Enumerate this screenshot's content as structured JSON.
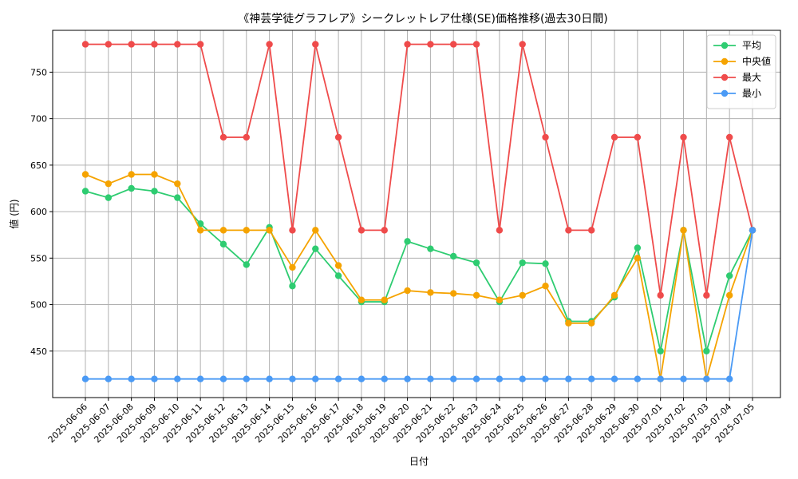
{
  "chart_data": {
    "type": "line",
    "title": "《神芸学徒グラフレア》シークレットレア仕様(SE)価格推移(過去30日間)",
    "xlabel": "日付",
    "ylabel": "値 (円)",
    "ylim": [
      400,
      795
    ],
    "yticks": [
      450,
      500,
      550,
      600,
      650,
      700,
      750
    ],
    "grid": true,
    "legend_position": "top-right",
    "categories": [
      "2025-06-06",
      "2025-06-07",
      "2025-06-08",
      "2025-06-09",
      "2025-06-10",
      "2025-06-11",
      "2025-06-12",
      "2025-06-13",
      "2025-06-14",
      "2025-06-15",
      "2025-06-16",
      "2025-06-17",
      "2025-06-18",
      "2025-06-19",
      "2025-06-20",
      "2025-06-21",
      "2025-06-22",
      "2025-06-23",
      "2025-06-24",
      "2025-06-25",
      "2025-06-26",
      "2025-06-27",
      "2025-06-28",
      "2025-06-29",
      "2025-06-30",
      "2025-07-01",
      "2025-07-02",
      "2025-07-03",
      "2025-07-04",
      "2025-07-05"
    ],
    "series": [
      {
        "name": "平均",
        "color": "#2ecc71",
        "values": [
          622,
          615,
          625,
          622,
          615,
          587,
          565,
          543,
          583,
          520,
          560,
          531,
          503,
          503,
          568,
          560,
          552,
          545,
          503,
          545,
          544,
          482,
          482,
          508,
          561,
          450,
          580,
          450,
          531,
          580
        ]
      },
      {
        "name": "中央値",
        "color": "#f5a300",
        "values": [
          640,
          630,
          640,
          640,
          630,
          580,
          580,
          580,
          580,
          540,
          580,
          542,
          505,
          505,
          515,
          513,
          512,
          510,
          505,
          510,
          520,
          480,
          480,
          510,
          550,
          420,
          580,
          420,
          510,
          580
        ]
      },
      {
        "name": "最大",
        "color": "#ef4b4b",
        "values": [
          780,
          780,
          780,
          780,
          780,
          780,
          680,
          680,
          780,
          580,
          780,
          680,
          580,
          580,
          780,
          780,
          780,
          780,
          580,
          780,
          680,
          580,
          580,
          680,
          680,
          510,
          680,
          510,
          680,
          580
        ]
      },
      {
        "name": "最小",
        "color": "#4a9af5",
        "values": [
          420,
          420,
          420,
          420,
          420,
          420,
          420,
          420,
          420,
          420,
          420,
          420,
          420,
          420,
          420,
          420,
          420,
          420,
          420,
          420,
          420,
          420,
          420,
          420,
          420,
          420,
          420,
          420,
          420,
          580
        ]
      }
    ]
  }
}
